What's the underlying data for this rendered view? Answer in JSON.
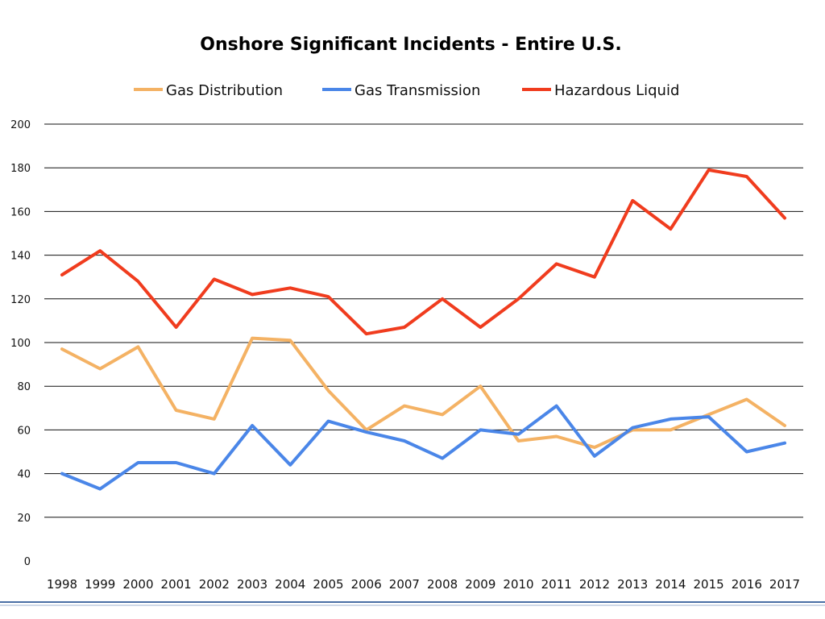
{
  "chart_data": {
    "type": "line",
    "title": "Onshore Significant Incidents - Entire U.S.",
    "xlabel": "",
    "ylabel": "",
    "ylim": [
      0,
      200
    ],
    "yticks": [
      0,
      20,
      40,
      60,
      80,
      100,
      120,
      140,
      160,
      180,
      200
    ],
    "grid": true,
    "legend_position": "top-center",
    "categories": [
      "1998",
      "1999",
      "2000",
      "2001",
      "2002",
      "2003",
      "2004",
      "2005",
      "2006",
      "2007",
      "2008",
      "2009",
      "2010",
      "2011",
      "2012",
      "2013",
      "2014",
      "2015",
      "2016",
      "2017"
    ],
    "series": [
      {
        "name": "Gas Distribution",
        "color": "#f4b264",
        "values": [
          97,
          88,
          98,
          69,
          65,
          102,
          101,
          78,
          60,
          71,
          67,
          80,
          55,
          57,
          52,
          60,
          60,
          67,
          74,
          62
        ]
      },
      {
        "name": "Gas Transmission",
        "color": "#4a86e8",
        "values": [
          40,
          33,
          45,
          45,
          40,
          62,
          44,
          64,
          59,
          55,
          47,
          60,
          58,
          71,
          48,
          61,
          65,
          66,
          50,
          54
        ]
      },
      {
        "name": "Hazardous Liquid",
        "color": "#f03c1e",
        "values": [
          131,
          142,
          128,
          107,
          129,
          122,
          125,
          121,
          104,
          107,
          120,
          107,
          120,
          136,
          130,
          165,
          152,
          179,
          176,
          157
        ]
      }
    ]
  }
}
